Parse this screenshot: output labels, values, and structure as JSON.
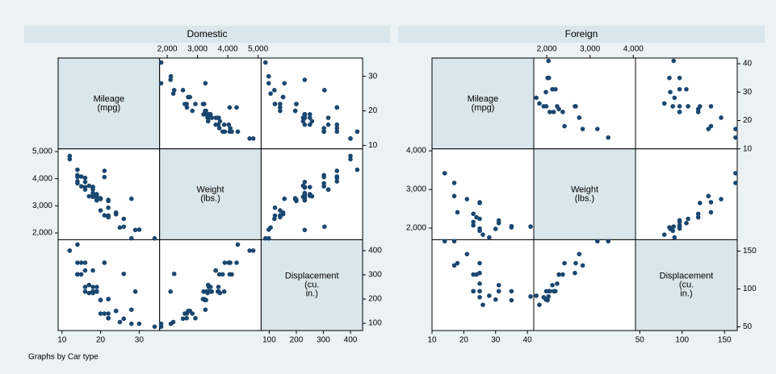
{
  "chart_data": [
    {
      "type": "scatter-matrix",
      "title": "Domestic",
      "variables": [
        {
          "label": [
            "Mileage",
            "(mpg)"
          ],
          "lim": [
            9,
            35.3
          ],
          "ticks": [
            10,
            20,
            30
          ],
          "values": [
            22,
            17,
            22,
            20,
            15,
            18,
            26,
            20,
            16,
            19,
            14,
            14,
            21,
            29,
            16,
            22,
            22,
            24,
            19,
            30,
            18,
            16,
            17,
            28,
            21,
            12,
            12,
            14,
            22,
            14,
            15,
            18,
            14,
            20,
            21,
            19,
            19,
            18,
            19,
            24,
            16,
            28,
            34,
            25,
            26,
            18,
            18,
            18,
            19,
            19,
            19,
            24
          ]
        },
        {
          "label": [
            "Weight",
            "(lbs.)"
          ],
          "lim": [
            1750,
            5100
          ],
          "ticks": [
            {
              "value": 2000,
              "label": "2,000"
            },
            {
              "value": 3000,
              "label": "3,000"
            },
            {
              "value": 4000,
              "label": "4,000"
            },
            {
              "value": 5000,
              "label": "5,000"
            }
          ],
          "values": [
            2930,
            3350,
            2640,
            3250,
            4080,
            3670,
            2230,
            3280,
            3880,
            3400,
            4330,
            3900,
            4290,
            2110,
            3690,
            3180,
            3220,
            2750,
            3430,
            2120,
            3600,
            3600,
            3740,
            1800,
            2650,
            4840,
            4720,
            3830,
            2580,
            4060,
            3720,
            3370,
            4130,
            2830,
            4060,
            3310,
            3300,
            3690,
            3370,
            2720,
            4030,
            3260,
            1800,
            2200,
            2520,
            3330,
            3700,
            3470,
            3210,
            3200,
            3420,
            2690
          ]
        },
        {
          "label": [
            "Displacement",
            "(cu.",
            "in.)"
          ],
          "lim": [
            70,
            445
          ],
          "ticks": [
            100,
            200,
            300,
            400
          ],
          "values": [
            121,
            258,
            121,
            196,
            350,
            231,
            304,
            196,
            231,
            231,
            425,
            350,
            350,
            231,
            250,
            200,
            200,
            151,
            250,
            98,
            318,
            318,
            225,
            98,
            140,
            400,
            400,
            302,
            140,
            302,
            302,
            250,
            302,
            140,
            350,
            231,
            231,
            231,
            231,
            151,
            350,
            156,
            86,
            105,
            119,
            225,
            231,
            231,
            231,
            231,
            231,
            151
          ]
        }
      ]
    },
    {
      "type": "scatter-matrix",
      "title": "Foreign",
      "variables": [
        {
          "label": [
            "Mileage",
            "(mpg)"
          ],
          "lim": [
            10,
            42
          ],
          "ticks": [
            10,
            20,
            30,
            40
          ],
          "values": [
            17,
            23,
            25,
            23,
            35,
            24,
            21,
            31,
            25,
            28,
            30,
            14,
            26,
            35,
            18,
            31,
            25,
            23,
            41,
            25,
            25,
            17
          ]
        },
        {
          "label": [
            "Weight",
            "(lbs.)"
          ],
          "lim": [
            1700,
            4050
          ],
          "ticks": [
            {
              "value": 2000,
              "label": "2,000"
            },
            {
              "value": 3000,
              "label": "3,000"
            },
            {
              "value": 4000,
              "label": "4,000"
            }
          ],
          "values": [
            2830,
            2070,
            2650,
            2370,
            2020,
            2280,
            2750,
            2130,
            2240,
            1760,
            1980,
            3420,
            1830,
            2050,
            2410,
            2200,
            2670,
            2160,
            2040,
            1930,
            1990,
            3170
          ]
        },
        {
          "label": [
            "Displacement",
            "(cu.",
            "in.)"
          ],
          "lim": [
            45,
            165
          ],
          "ticks": [
            50,
            100,
            150
          ],
          "values": [
            131,
            97,
            121,
            119,
            85,
            119,
            146,
            105,
            107,
            91,
            86,
            163,
            79,
            97,
            134,
            97,
            134,
            97,
            90,
            89,
            97,
            163
          ]
        }
      ]
    }
  ],
  "note": "Graphs by Car type"
}
